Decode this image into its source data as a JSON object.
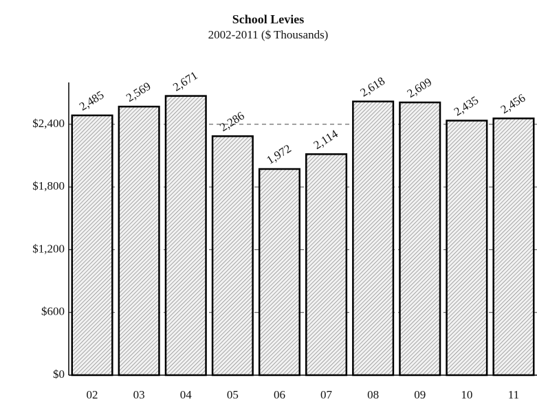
{
  "chart_data": {
    "type": "bar",
    "title": "School Levies",
    "subtitle": "2002-2011 ($ Thousands)",
    "categories": [
      "02",
      "03",
      "04",
      "05",
      "06",
      "07",
      "08",
      "09",
      "10",
      "11"
    ],
    "values": [
      2485,
      2569,
      2671,
      2286,
      1972,
      2114,
      2618,
      2609,
      2435,
      2456
    ],
    "value_labels": [
      "2,485",
      "2,569",
      "2,671",
      "2,286",
      "1,972",
      "2,114",
      "2,618",
      "2,609",
      "2,435",
      "2,456"
    ],
    "ylim": [
      0,
      2800
    ],
    "yticks": [
      {
        "value": 0,
        "label": "$0"
      },
      {
        "value": 600,
        "label": "$600"
      },
      {
        "value": 1200,
        "label": "$1,200"
      },
      {
        "value": 1800,
        "label": "$1,800"
      },
      {
        "value": 2400,
        "label": "$2,400"
      }
    ],
    "grid": true
  }
}
